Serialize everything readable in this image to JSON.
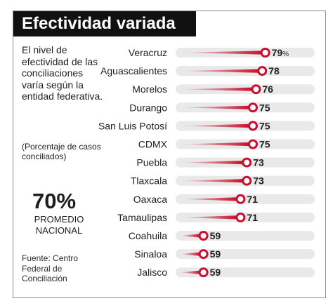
{
  "header": {
    "title": "Efectividad variada"
  },
  "sidebar": {
    "description": "El nivel de efectividad de las conciliaciones varía según la entidad federativa.",
    "note": "(Porcentaje de casos conciliados)",
    "average_value": "70%",
    "average_label_line1": "PROMEDIO",
    "average_label_line2": "NACIONAL",
    "source": "Fuente: Centro Federal de Conciliación"
  },
  "colors": {
    "marker": "#c8102e",
    "track": "#e9e9e9",
    "title_background": "#111111"
  },
  "chart_data": {
    "type": "bar",
    "title": "Efectividad variada",
    "value_unit": "%",
    "categories": [
      "Veracruz",
      "Aguascalientes",
      "Morelos",
      "Durango",
      "San Luis Potosí",
      "CDMX",
      "Puebla",
      "Tlaxcala",
      "Oaxaca",
      "Tamaulipas",
      "Coahuila",
      "Sinaloa",
      "Jalisco"
    ],
    "values": [
      79,
      78,
      76,
      75,
      75,
      75,
      73,
      73,
      71,
      71,
      59,
      59,
      59
    ],
    "labels": [
      "79",
      "78",
      "76",
      "75",
      "75",
      "75",
      "73",
      "73",
      "71",
      "71",
      "59",
      "59",
      "59"
    ]
  }
}
